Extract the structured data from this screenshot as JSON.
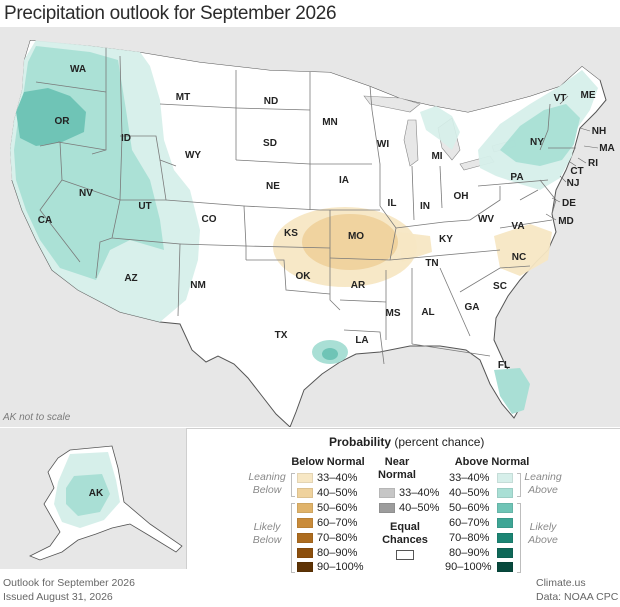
{
  "title": "Precipitation outlook for September 2026",
  "map": {
    "states": [
      {
        "abbr": "WA"
      },
      {
        "abbr": "OR"
      },
      {
        "abbr": "CA"
      },
      {
        "abbr": "ID"
      },
      {
        "abbr": "NV"
      },
      {
        "abbr": "MT"
      },
      {
        "abbr": "WY"
      },
      {
        "abbr": "UT"
      },
      {
        "abbr": "AZ"
      },
      {
        "abbr": "CO"
      },
      {
        "abbr": "NM"
      },
      {
        "abbr": "ND"
      },
      {
        "abbr": "SD"
      },
      {
        "abbr": "NE"
      },
      {
        "abbr": "KS"
      },
      {
        "abbr": "OK"
      },
      {
        "abbr": "TX"
      },
      {
        "abbr": "MN"
      },
      {
        "abbr": "IA"
      },
      {
        "abbr": "MO"
      },
      {
        "abbr": "AR"
      },
      {
        "abbr": "LA"
      },
      {
        "abbr": "WI"
      },
      {
        "abbr": "IL"
      },
      {
        "abbr": "MS"
      },
      {
        "abbr": "MI"
      },
      {
        "abbr": "IN"
      },
      {
        "abbr": "OH"
      },
      {
        "abbr": "KY"
      },
      {
        "abbr": "TN"
      },
      {
        "abbr": "AL"
      },
      {
        "abbr": "GA"
      },
      {
        "abbr": "FL"
      },
      {
        "abbr": "SC"
      },
      {
        "abbr": "NC"
      },
      {
        "abbr": "VA"
      },
      {
        "abbr": "WV"
      },
      {
        "abbr": "PA"
      },
      {
        "abbr": "NY"
      },
      {
        "abbr": "VT"
      },
      {
        "abbr": "NH"
      },
      {
        "abbr": "ME"
      },
      {
        "abbr": "MA"
      },
      {
        "abbr": "CT"
      },
      {
        "abbr": "RI"
      },
      {
        "abbr": "NJ"
      },
      {
        "abbr": "DE"
      },
      {
        "abbr": "MD"
      }
    ],
    "ak_label": "AK",
    "ak_note": "AK not to scale"
  },
  "legend": {
    "heading_bold": "Probability",
    "heading_rest": " (percent chance)",
    "below_title": "Below Normal",
    "near_title": "Near Normal",
    "above_title": "Above Normal",
    "below": [
      {
        "label": "33–40%",
        "color": "#f7e7c4"
      },
      {
        "label": "40–50%",
        "color": "#efd29d"
      },
      {
        "label": "50–60%",
        "color": "#e0b36a"
      },
      {
        "label": "60–70%",
        "color": "#c98b3a"
      },
      {
        "label": "70–80%",
        "color": "#ad6c1f"
      },
      {
        "label": "80–90%",
        "color": "#8c4f0d"
      },
      {
        "label": "90–100%",
        "color": "#5e3305"
      }
    ],
    "near": [
      {
        "label": "33–40%",
        "color": "#c6c6c6"
      },
      {
        "label": "40–50%",
        "color": "#9c9c9c"
      }
    ],
    "above": [
      {
        "label": "33–40%",
        "color": "#d6efea"
      },
      {
        "label": "40–50%",
        "color": "#a9dfd5"
      },
      {
        "label": "50–60%",
        "color": "#6fc4b6"
      },
      {
        "label": "60–70%",
        "color": "#3ea595"
      },
      {
        "label": "70–80%",
        "color": "#1c8574"
      },
      {
        "label": "80–90%",
        "color": "#0f6858"
      },
      {
        "label": "90–100%",
        "color": "#07493d"
      }
    ],
    "leaning_below": "Leaning Below",
    "likely_below": "Likely Below",
    "leaning_above": "Leaning Above",
    "likely_above": "Likely Above",
    "equal_chances": "Equal Chances"
  },
  "footer": {
    "outlook": "Outlook for September 2026",
    "issued": "Issued August 31, 2026",
    "site": "Climate.us",
    "data": "Data: NOAA CPC"
  }
}
